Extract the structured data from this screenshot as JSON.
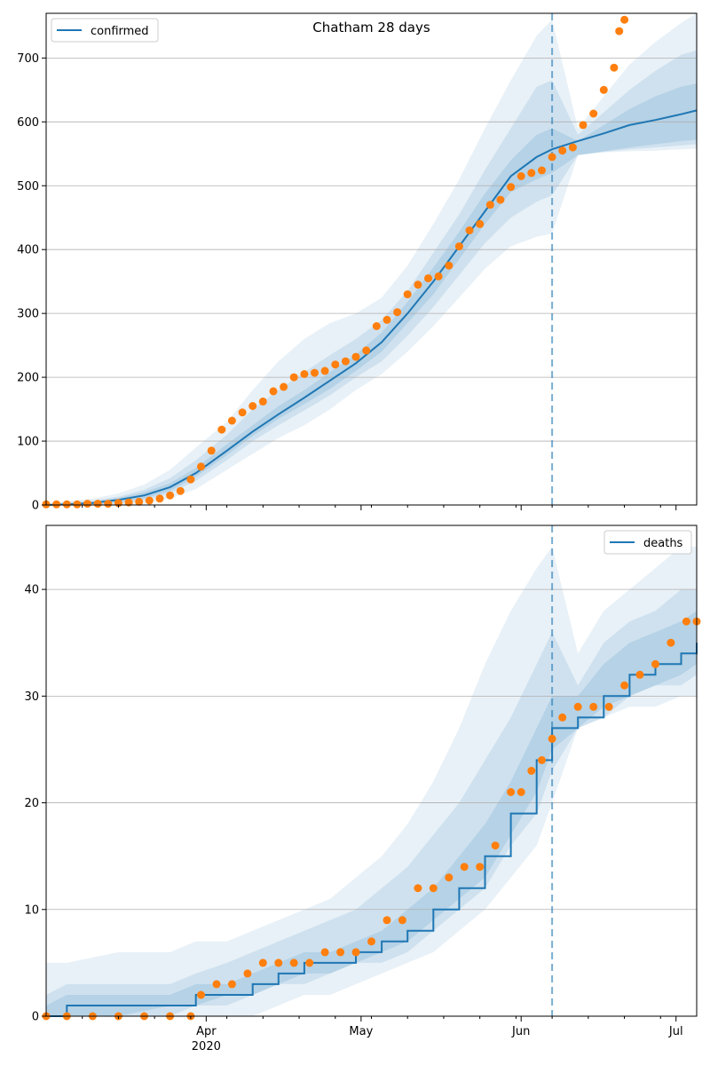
{
  "chart_data": [
    {
      "type": "line",
      "title": "Chatham 28 days",
      "legend": {
        "label": "confirmed",
        "placement": "top-left"
      },
      "x_range": [
        "2020-03-01",
        "2020-07-05"
      ],
      "ylim": [
        0,
        770
      ],
      "yticks": [
        0,
        100,
        200,
        300,
        400,
        500,
        600,
        700
      ],
      "grid": "horizontal",
      "forecast_start": "2020-06-07",
      "line_color": "#1f77b4",
      "marker_color": "#ff7f0e",
      "model": {
        "x": [
          "2020-03-01",
          "2020-03-05",
          "2020-03-10",
          "2020-03-15",
          "2020-03-20",
          "2020-03-25",
          "2020-03-30",
          "2020-04-05",
          "2020-04-10",
          "2020-04-15",
          "2020-04-20",
          "2020-04-25",
          "2020-04-30",
          "2020-05-05",
          "2020-05-10",
          "2020-05-15",
          "2020-05-20",
          "2020-05-25",
          "2020-05-30",
          "2020-06-04",
          "2020-06-07",
          "2020-06-12",
          "2020-06-17",
          "2020-06-22",
          "2020-06-27",
          "2020-07-02",
          "2020-07-05"
        ],
        "y": [
          0,
          1,
          3,
          8,
          15,
          28,
          50,
          85,
          115,
          142,
          168,
          195,
          222,
          255,
          300,
          350,
          405,
          460,
          515,
          545,
          557,
          570,
          582,
          595,
          603,
          612,
          618
        ],
        "bands": [
          {
            "lower": [
              0,
              0,
              0,
              0,
              2,
              10,
              25,
              55,
              80,
              105,
              125,
              150,
              180,
              205,
              240,
              280,
              325,
              370,
              405,
              420,
              425,
              548,
              552,
              554,
              555,
              557,
              558
            ],
            "upper": [
              2,
              6,
              10,
              18,
              32,
              55,
              90,
              130,
              180,
              225,
              260,
              285,
              300,
              325,
              375,
              440,
              510,
              590,
              665,
              735,
              760,
              590,
              640,
              690,
              725,
              755,
              770
            ]
          },
          {
            "lower": [
              0,
              0,
              0,
              2,
              7,
              18,
              38,
              70,
              100,
              125,
              148,
              172,
              200,
              225,
              265,
              310,
              360,
              410,
              450,
              475,
              485,
              548,
              553,
              557,
              560,
              563,
              565
            ],
            "upper": [
              1,
              4,
              7,
              13,
              24,
              42,
              70,
              110,
              150,
              180,
              208,
              235,
              260,
              290,
              335,
              395,
              455,
              525,
              590,
              655,
              665,
              580,
              615,
              650,
              680,
              705,
              712
            ],
            "fill_alpha": 0.12
          },
          {
            "lower": [
              0,
              0,
              1,
              4,
              10,
              22,
              44,
              78,
              108,
              135,
              158,
              182,
              210,
              240,
              285,
              330,
              385,
              440,
              490,
              510,
              520,
              548,
              554,
              560,
              565,
              570,
              572
            ],
            "upper": [
              1,
              2,
              5,
              11,
              20,
              34,
              58,
              95,
              125,
              155,
              180,
              208,
              236,
              270,
              318,
              372,
              428,
              488,
              540,
              580,
              590,
              570,
              595,
              620,
              640,
              655,
              660
            ],
            "fill_alpha": 0.14
          }
        ]
      },
      "observed": {
        "x": [
          "2020-03-01",
          "2020-03-03",
          "2020-03-05",
          "2020-03-07",
          "2020-03-09",
          "2020-03-11",
          "2020-03-13",
          "2020-03-15",
          "2020-03-17",
          "2020-03-19",
          "2020-03-21",
          "2020-03-23",
          "2020-03-25",
          "2020-03-27",
          "2020-03-29",
          "2020-03-31",
          "2020-04-02",
          "2020-04-04",
          "2020-04-06",
          "2020-04-08",
          "2020-04-10",
          "2020-04-12",
          "2020-04-14",
          "2020-04-16",
          "2020-04-18",
          "2020-04-20",
          "2020-04-22",
          "2020-04-24",
          "2020-04-26",
          "2020-04-28",
          "2020-04-30",
          "2020-05-02",
          "2020-05-04",
          "2020-05-06",
          "2020-05-08",
          "2020-05-10",
          "2020-05-12",
          "2020-05-14",
          "2020-05-16",
          "2020-05-18",
          "2020-05-20",
          "2020-05-22",
          "2020-05-24",
          "2020-05-26",
          "2020-05-28",
          "2020-05-30",
          "2020-06-01",
          "2020-06-03",
          "2020-06-05",
          "2020-06-07",
          "2020-06-09",
          "2020-06-11",
          "2020-06-13",
          "2020-06-15",
          "2020-06-17",
          "2020-06-19",
          "2020-06-20",
          "2020-06-21"
        ],
        "y": [
          1,
          1,
          1,
          1,
          2,
          2,
          2,
          3,
          4,
          5,
          7,
          10,
          15,
          22,
          40,
          60,
          85,
          118,
          132,
          145,
          155,
          162,
          178,
          185,
          200,
          205,
          207,
          210,
          220,
          225,
          232,
          242,
          280,
          290,
          302,
          330,
          345,
          355,
          358,
          375,
          405,
          430,
          440,
          470,
          478,
          498,
          515,
          520,
          524,
          545,
          555,
          560,
          595,
          613,
          650,
          685,
          742,
          760
        ]
      }
    },
    {
      "type": "line",
      "title": "",
      "legend": {
        "label": "deaths",
        "placement": "top-right"
      },
      "x_range": [
        "2020-03-01",
        "2020-07-05"
      ],
      "ylim": [
        0,
        46
      ],
      "yticks": [
        0,
        10,
        20,
        30,
        40
      ],
      "grid": "horizontal",
      "forecast_start": "2020-06-07",
      "xticks": [
        "Apr",
        "May",
        "Jun",
        "Jul"
      ],
      "xtick_dates": [
        "2020-04-01",
        "2020-05-01",
        "2020-06-01",
        "2020-07-01"
      ],
      "xtick_year": "2020",
      "line_color": "#1f77b4",
      "marker_color": "#ff7f0e",
      "model": {
        "x": [
          "2020-03-01",
          "2020-03-05",
          "2020-03-15",
          "2020-03-25",
          "2020-03-30",
          "2020-04-05",
          "2020-04-10",
          "2020-04-15",
          "2020-04-20",
          "2020-04-25",
          "2020-04-30",
          "2020-05-05",
          "2020-05-10",
          "2020-05-15",
          "2020-05-20",
          "2020-05-25",
          "2020-05-30",
          "2020-06-04",
          "2020-06-07",
          "2020-06-12",
          "2020-06-17",
          "2020-06-22",
          "2020-06-27",
          "2020-07-02",
          "2020-07-05"
        ],
        "y": [
          0,
          1,
          1,
          1,
          2,
          2,
          3,
          4,
          5,
          5,
          6,
          7,
          8,
          10,
          12,
          15,
          19,
          24,
          27,
          28,
          30,
          32,
          33,
          34,
          35
        ],
        "bands": [
          {
            "lower": [
              0,
              0,
              0,
              0,
              0,
              0,
              0,
              1,
              2,
              2,
              3,
              4,
              5,
              6,
              8,
              10,
              13,
              16,
              20,
              27,
              28,
              29,
              29,
              30,
              30
            ],
            "upper": [
              5,
              5,
              6,
              6,
              7,
              7,
              8,
              9,
              10,
              11,
              13,
              15,
              18,
              22,
              27,
              33,
              38,
              42,
              44,
              34,
              38,
              40,
              42,
              44,
              44
            ]
          },
          {
            "lower": [
              0,
              0,
              0,
              0,
              1,
              1,
              2,
              3,
              3,
              4,
              5,
              5,
              6,
              8,
              10,
              12,
              16,
              19,
              23,
              27,
              28,
              30,
              31,
              31,
              32
            ],
            "upper": [
              2,
              3,
              3,
              3,
              4,
              5,
              6,
              7,
              8,
              9,
              10,
              12,
              14,
              17,
              20,
              24,
              28,
              33,
              36,
              31,
              35,
              37,
              38,
              40,
              40
            ],
            "fill_alpha": 0.12
          },
          {
            "lower": [
              0,
              0,
              0,
              1,
              1,
              2,
              2,
              3,
              4,
              4,
              5,
              6,
              7,
              9,
              11,
              13,
              17,
              21,
              25,
              27,
              29,
              30,
              31,
              32,
              33
            ],
            "upper": [
              1,
              2,
              2,
              2,
              3,
              3,
              4,
              5,
              6,
              6,
              7,
              8,
              10,
              12,
              15,
              18,
              22,
              27,
              30,
              30,
              33,
              35,
              36,
              37,
              38
            ],
            "fill_alpha": 0.14
          }
        ]
      },
      "observed": {
        "x": [
          "2020-03-01",
          "2020-03-05",
          "2020-03-10",
          "2020-03-15",
          "2020-03-20",
          "2020-03-25",
          "2020-03-29",
          "2020-03-31",
          "2020-04-03",
          "2020-04-06",
          "2020-04-09",
          "2020-04-12",
          "2020-04-15",
          "2020-04-18",
          "2020-04-21",
          "2020-04-24",
          "2020-04-27",
          "2020-04-30",
          "2020-05-03",
          "2020-05-06",
          "2020-05-09",
          "2020-05-12",
          "2020-05-15",
          "2020-05-18",
          "2020-05-21",
          "2020-05-24",
          "2020-05-27",
          "2020-05-30",
          "2020-06-01",
          "2020-06-03",
          "2020-06-05",
          "2020-06-07",
          "2020-06-09",
          "2020-06-12",
          "2020-06-15",
          "2020-06-18",
          "2020-06-21",
          "2020-06-24",
          "2020-06-27",
          "2020-06-30",
          "2020-07-03",
          "2020-07-05"
        ],
        "y": [
          0,
          0,
          0,
          0,
          0,
          0,
          0,
          2,
          3,
          3,
          4,
          5,
          5,
          5,
          5,
          6,
          6,
          6,
          7,
          9,
          9,
          12,
          12,
          13,
          14,
          14,
          16,
          21,
          21,
          23,
          24,
          26,
          28,
          29,
          29,
          29,
          31,
          32,
          33,
          35,
          37,
          37
        ]
      }
    }
  ]
}
